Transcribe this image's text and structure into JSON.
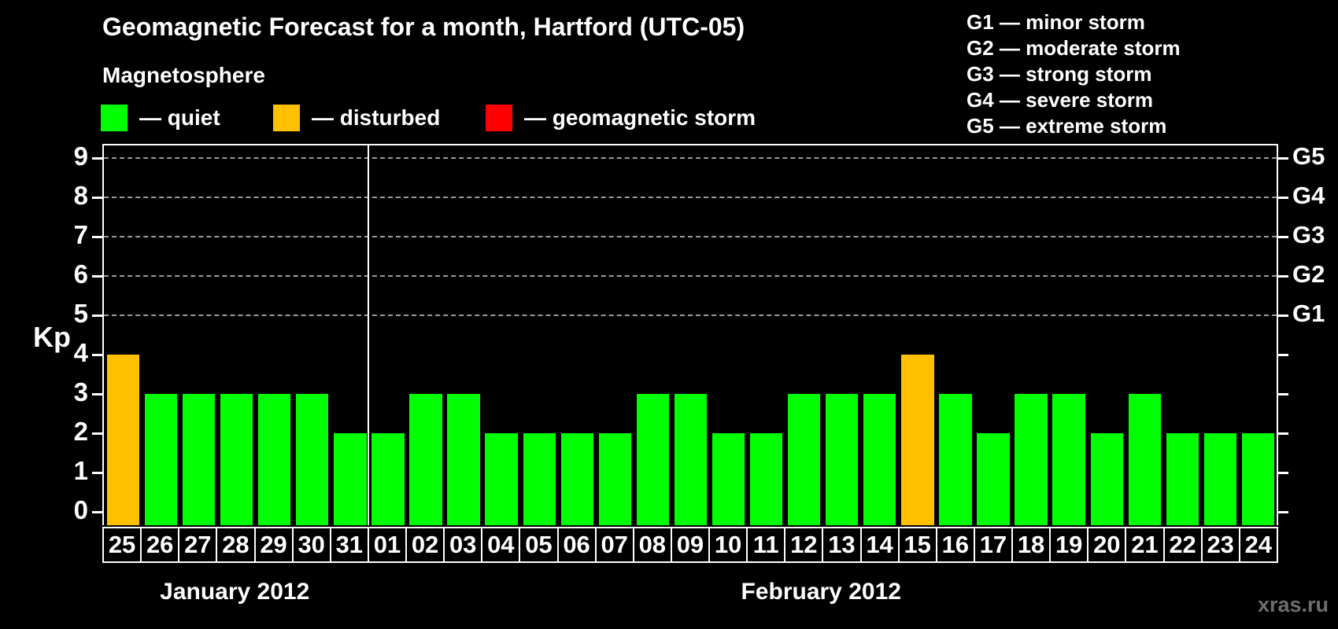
{
  "title": "Geomagnetic Forecast for a month, Hartford (UTC-05)",
  "subtitle": "Magnetosphere",
  "legend": {
    "items": [
      {
        "name": "quiet",
        "label": "— quiet",
        "color": "#00ff00"
      },
      {
        "name": "disturbed",
        "label": "— disturbed",
        "color": "#ffc000"
      },
      {
        "name": "storm",
        "label": "— geomagnetic storm",
        "color": "#ff0000"
      }
    ]
  },
  "storm_scale_legend": [
    {
      "code": "G1",
      "desc": "minor storm"
    },
    {
      "code": "G2",
      "desc": "moderate storm"
    },
    {
      "code": "G3",
      "desc": "strong storm"
    },
    {
      "code": "G4",
      "desc": "severe storm"
    },
    {
      "code": "G5",
      "desc": "extreme storm"
    }
  ],
  "watermark": "xras.ru",
  "chart_data": {
    "type": "bar",
    "ylabel": "Kp",
    "ylim": [
      0,
      9
    ],
    "yticks": [
      0,
      1,
      2,
      3,
      4,
      5,
      6,
      7,
      8,
      9
    ],
    "gridlines_at": [
      5,
      6,
      7,
      8,
      9
    ],
    "grid_style": "dashed",
    "right_axis": [
      {
        "kp": 5,
        "label": "G1"
      },
      {
        "kp": 6,
        "label": "G2"
      },
      {
        "kp": 7,
        "label": "G3"
      },
      {
        "kp": 8,
        "label": "G4"
      },
      {
        "kp": 9,
        "label": "G5"
      }
    ],
    "months": [
      {
        "label": "January 2012",
        "days": 7
      },
      {
        "label": "February 2012",
        "days": 24
      }
    ],
    "categories": [
      "25",
      "26",
      "27",
      "28",
      "29",
      "30",
      "31",
      "01",
      "02",
      "03",
      "04",
      "05",
      "06",
      "07",
      "08",
      "09",
      "10",
      "11",
      "12",
      "13",
      "14",
      "15",
      "16",
      "17",
      "18",
      "19",
      "20",
      "21",
      "22",
      "23",
      "24"
    ],
    "values": [
      4,
      3,
      3,
      3,
      3,
      3,
      2,
      2,
      3,
      3,
      2,
      2,
      2,
      2,
      3,
      3,
      2,
      2,
      3,
      3,
      3,
      4,
      3,
      2,
      3,
      3,
      2,
      3,
      2,
      2,
      2
    ],
    "states": [
      "disturbed",
      "quiet",
      "quiet",
      "quiet",
      "quiet",
      "quiet",
      "quiet",
      "quiet",
      "quiet",
      "quiet",
      "quiet",
      "quiet",
      "quiet",
      "quiet",
      "quiet",
      "quiet",
      "quiet",
      "quiet",
      "quiet",
      "quiet",
      "quiet",
      "disturbed",
      "quiet",
      "quiet",
      "quiet",
      "quiet",
      "quiet",
      "quiet",
      "quiet",
      "quiet",
      "quiet"
    ],
    "colors": {
      "quiet": "#00ff00",
      "disturbed": "#ffc000",
      "storm": "#ff0000"
    },
    "background": "#000000"
  }
}
